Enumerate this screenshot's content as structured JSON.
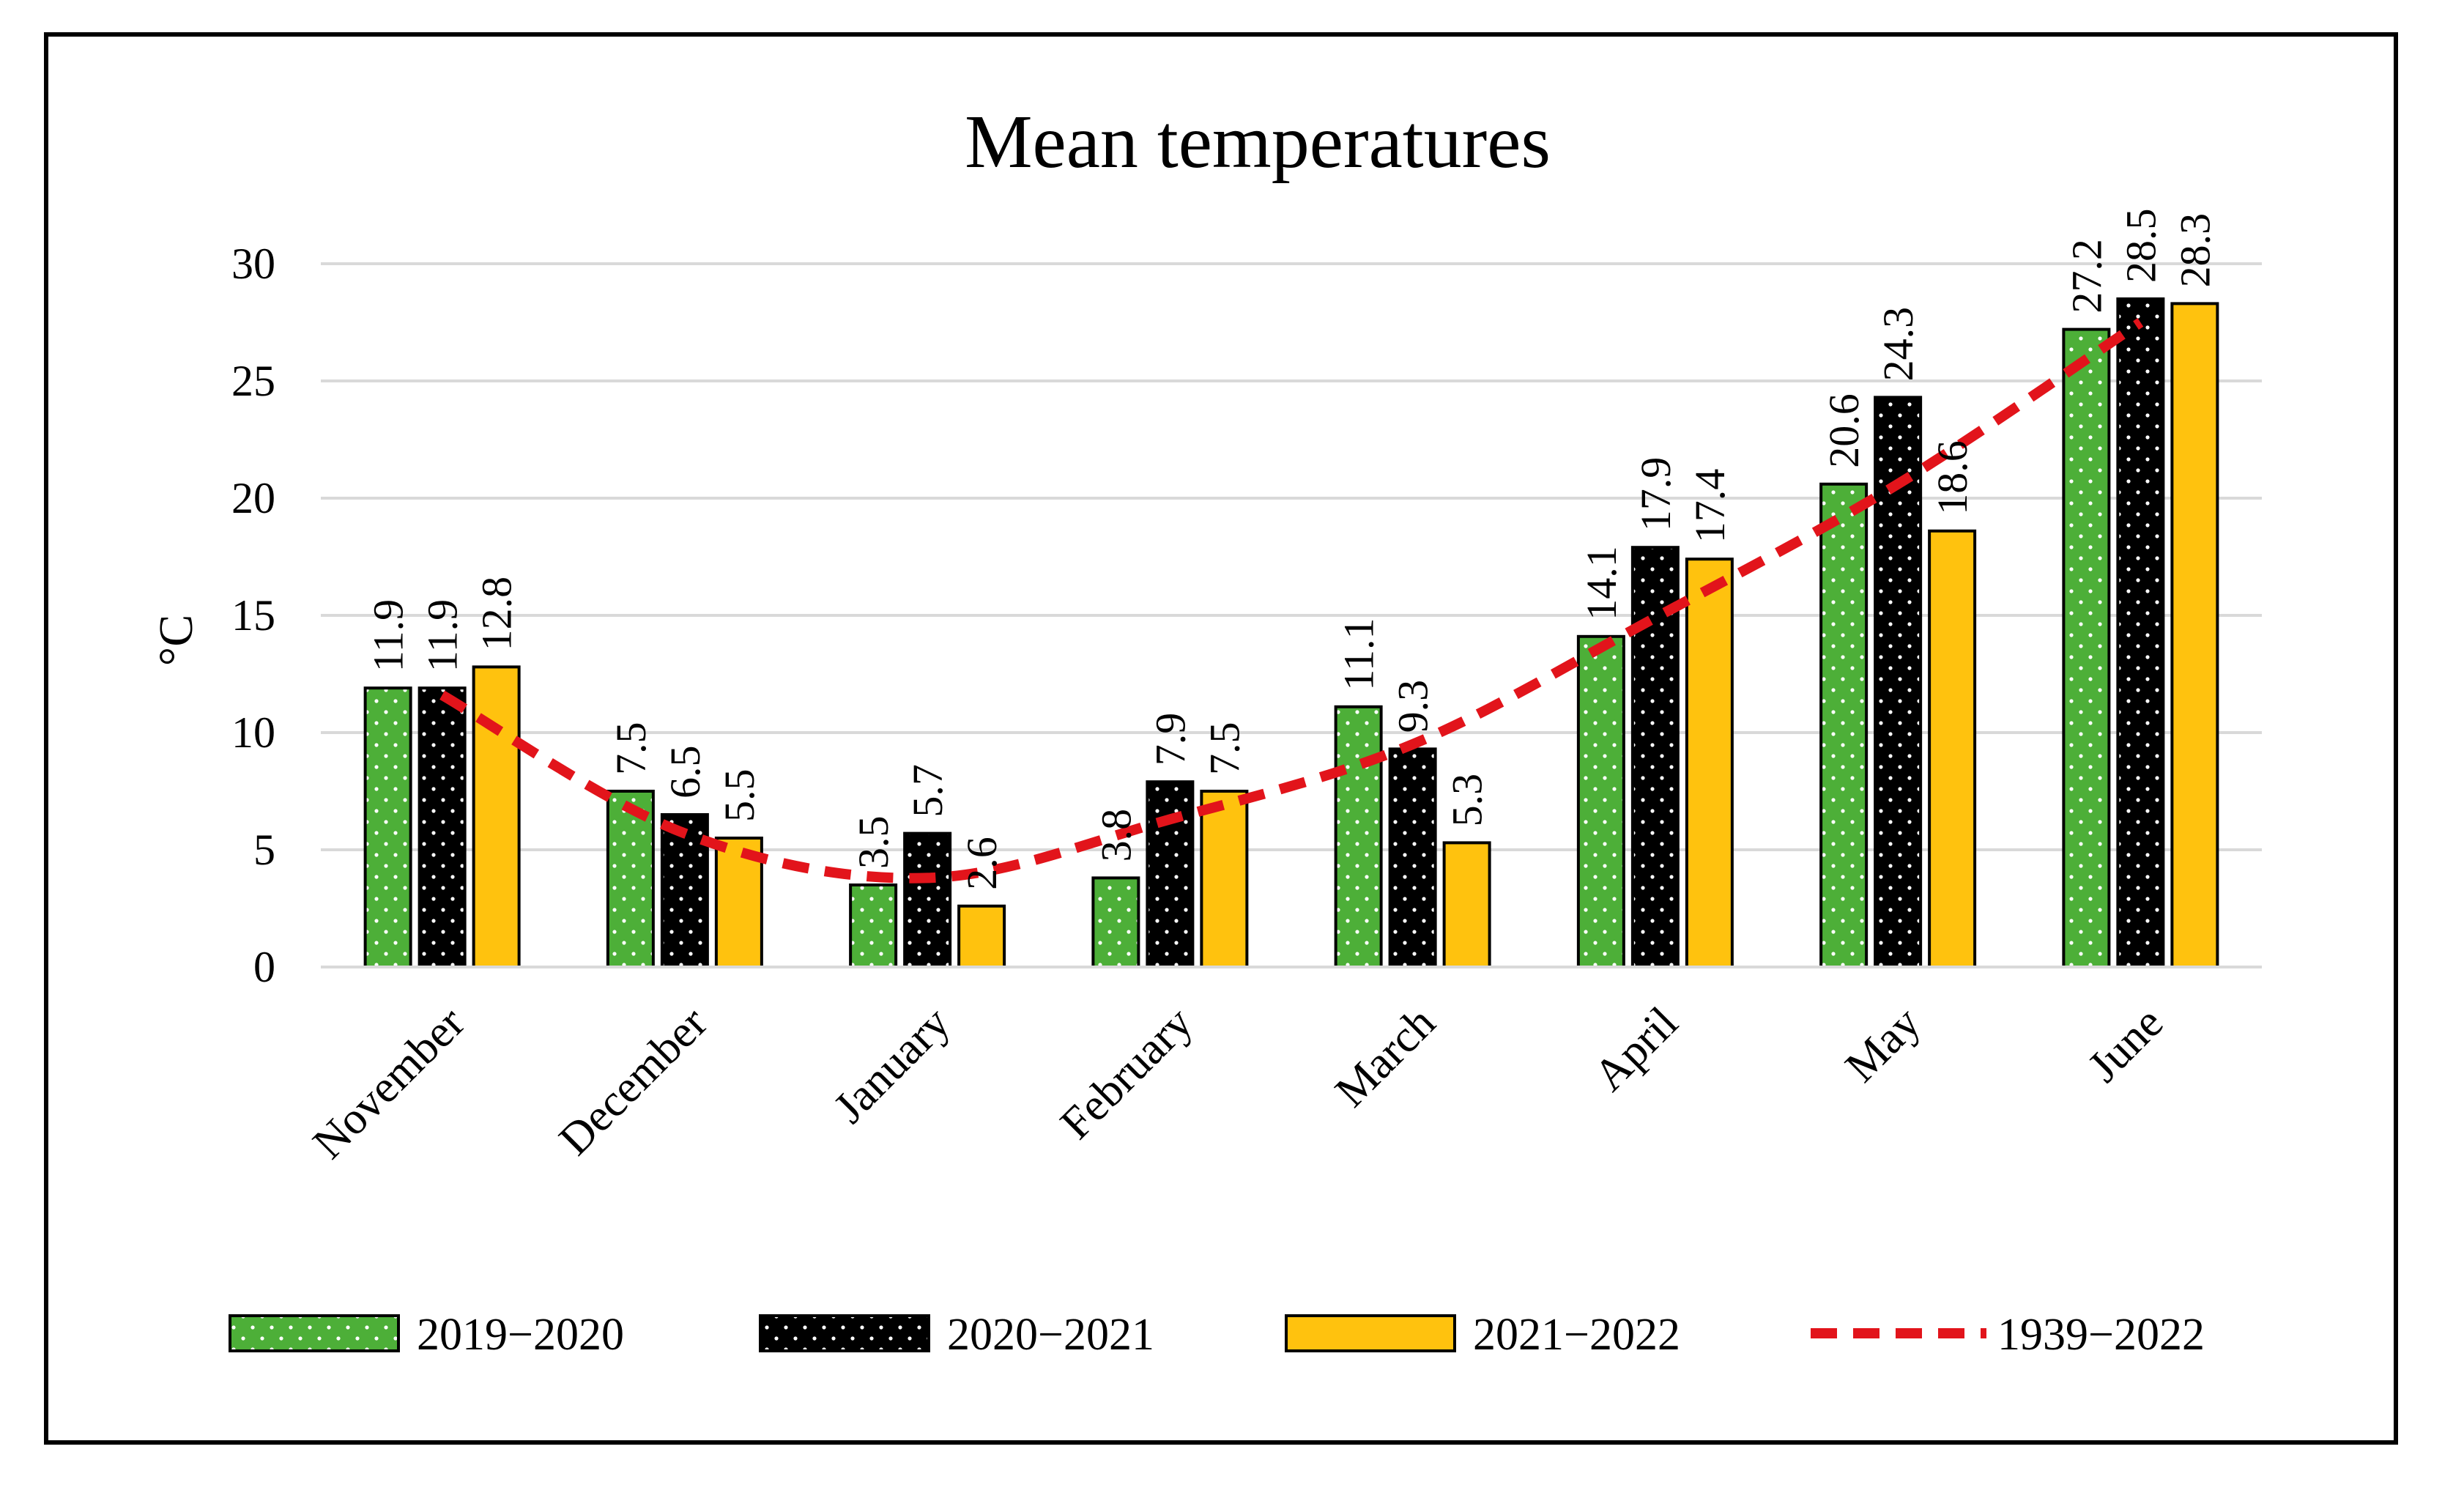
{
  "chart_data": {
    "type": "bar",
    "title": "Mean temperatures",
    "xlabel": "",
    "ylabel": "°C",
    "ylim": [
      0,
      30
    ],
    "yticks": [
      0,
      5,
      10,
      15,
      20,
      25,
      30
    ],
    "grid": true,
    "legend_position": "bottom",
    "categories": [
      "November",
      "December",
      "January",
      "February",
      "March",
      "April",
      "May",
      "June"
    ],
    "series": [
      {
        "name": "2019−2020",
        "kind": "bar",
        "color": "#4DAF38",
        "values": [
          11.9,
          7.5,
          3.5,
          3.8,
          11.1,
          14.1,
          20.6,
          27.2
        ]
      },
      {
        "name": "2020−2021",
        "kind": "bar",
        "color": "#000000",
        "values": [
          11.9,
          6.5,
          5.7,
          7.9,
          9.3,
          17.9,
          24.3,
          28.5
        ]
      },
      {
        "name": "2021−2022",
        "kind": "bar",
        "color": "#FFC20E",
        "values": [
          12.8,
          5.5,
          2.6,
          7.5,
          5.3,
          17.4,
          18.6,
          28.3
        ]
      },
      {
        "name": "1939−2022",
        "kind": "line",
        "style": "dashed",
        "color": "#E2141B",
        "values": [
          11.6,
          5.7,
          3.8,
          6.3,
          9.5,
          14.9,
          20.6,
          27.5
        ]
      }
    ],
    "data_labels": [
      [
        "11.9",
        "7.5",
        "3.5",
        "3.8",
        "11.1",
        "14.1",
        "20.6",
        "27.2"
      ],
      [
        "11.9",
        "6.5",
        "5.7",
        "7.9",
        "9.3",
        "17.9",
        "24.3",
        "28.5"
      ],
      [
        "12.8",
        "5.5",
        "2.6",
        "7.5",
        "5.3",
        "17.4",
        "18.6",
        "28.3"
      ]
    ]
  }
}
